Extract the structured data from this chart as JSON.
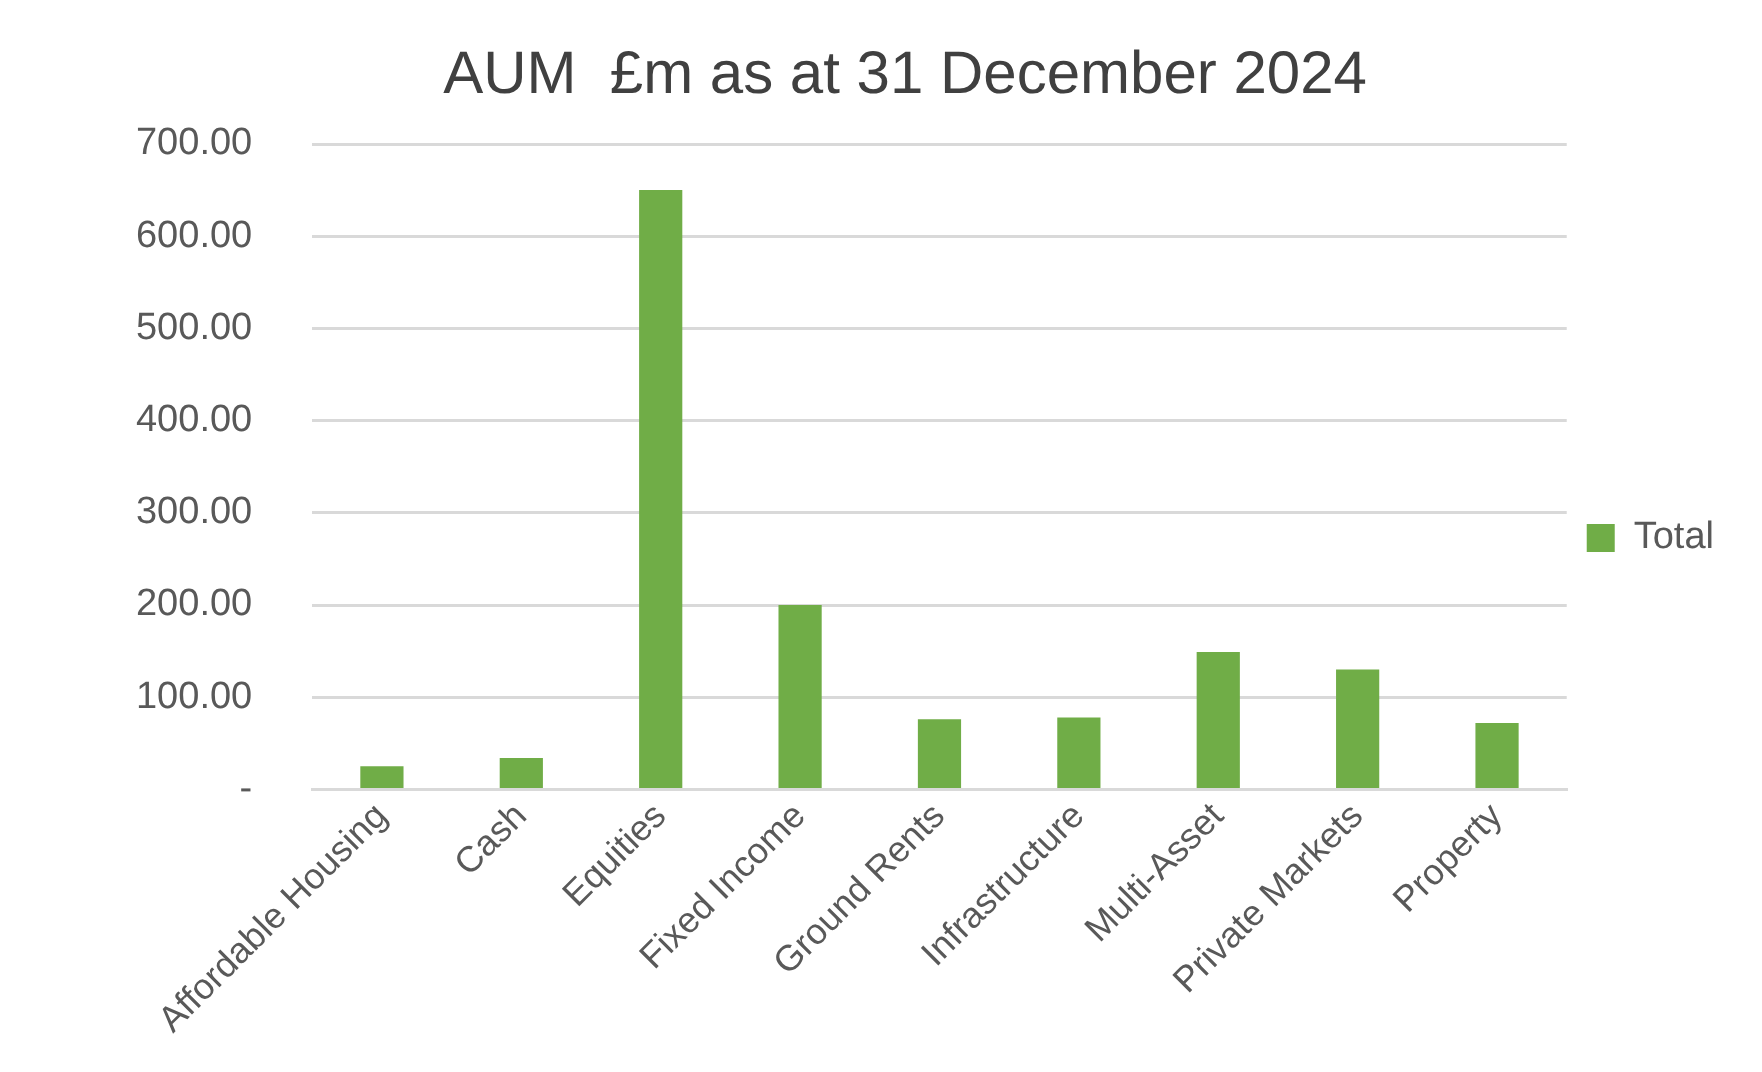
{
  "chart_data": {
    "type": "bar",
    "title": "AUM  £m as at 31 December 2024",
    "categories": [
      "Affordable Housing",
      "Cash",
      "Equities",
      "Fixed Income",
      "Ground Rents",
      "Infrastructure",
      "Multi-Asset",
      "Private Markets",
      "Property"
    ],
    "series": [
      {
        "name": "Total",
        "color": "#70ad47",
        "values": [
          25,
          34,
          650,
          200,
          76,
          78,
          149,
          130,
          72
        ]
      }
    ],
    "ylim": [
      0,
      700
    ],
    "yticks": [
      {
        "value": 0,
        "label": "-"
      },
      {
        "value": 100,
        "label": "100.00"
      },
      {
        "value": 200,
        "label": "200.00"
      },
      {
        "value": 300,
        "label": "300.00"
      },
      {
        "value": 400,
        "label": "400.00"
      },
      {
        "value": 500,
        "label": "500.00"
      },
      {
        "value": 600,
        "label": "600.00"
      },
      {
        "value": 700,
        "label": "700.00"
      }
    ],
    "grid": "y",
    "legend": "right"
  }
}
